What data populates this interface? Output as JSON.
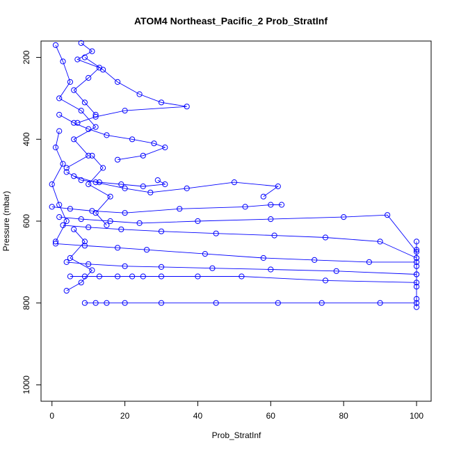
{
  "chart_data": {
    "type": "line",
    "title": "ATOM4 Northeast_Pacific_2 Prob_StratInf",
    "xlabel": "Prob_StratInf",
    "ylabel": "Pressure (mbar)",
    "xlim": [
      -3,
      104
    ],
    "ylim": [
      1040,
      160
    ],
    "y_reversed": true,
    "x_ticks": [
      0,
      20,
      40,
      60,
      80,
      100
    ],
    "y_ticks": [
      200,
      400,
      600,
      800,
      1000
    ],
    "grid": false,
    "legend": "none",
    "marker": "open-circle",
    "series_color": "#0000ff",
    "series": [
      {
        "x": [
          1,
          3,
          5,
          2,
          8,
          12,
          6,
          10,
          4
        ],
        "y": [
          170,
          210,
          260,
          300,
          330,
          370,
          400,
          440,
          470
        ]
      },
      {
        "x": [
          9,
          14,
          18,
          24,
          30,
          37,
          20,
          12,
          7
        ],
        "y": [
          200,
          230,
          260,
          290,
          310,
          320,
          330,
          345,
          360
        ]
      },
      {
        "x": [
          2,
          6,
          10,
          15,
          22,
          28,
          31,
          25,
          18
        ],
        "y": [
          340,
          360,
          375,
          390,
          400,
          410,
          420,
          440,
          450
        ]
      },
      {
        "x": [
          4,
          8,
          13,
          19,
          25,
          31,
          29
        ],
        "y": [
          480,
          500,
          505,
          510,
          515,
          510,
          500
        ]
      },
      {
        "x": [
          6,
          12,
          20,
          27,
          37,
          50,
          62,
          58
        ],
        "y": [
          490,
          505,
          520,
          530,
          520,
          505,
          515,
          540
        ]
      },
      {
        "x": [
          0,
          5,
          11,
          20,
          35,
          53,
          60,
          63
        ],
        "y": [
          565,
          570,
          575,
          580,
          570,
          565,
          560,
          560
        ]
      },
      {
        "x": [
          2,
          8,
          16,
          24,
          40,
          60,
          80,
          92,
          100
        ],
        "y": [
          590,
          595,
          600,
          605,
          600,
          595,
          590,
          585,
          675
        ]
      },
      {
        "x": [
          3,
          10,
          19,
          30,
          45,
          61,
          75,
          90,
          100
        ],
        "y": [
          610,
          615,
          620,
          625,
          630,
          635,
          640,
          650,
          690
        ]
      },
      {
        "x": [
          1,
          9,
          18,
          26,
          42,
          58,
          72,
          87,
          100
        ],
        "y": [
          655,
          660,
          665,
          670,
          680,
          690,
          695,
          700,
          700
        ]
      },
      {
        "x": [
          4,
          10,
          20,
          30,
          44,
          60,
          78,
          100
        ],
        "y": [
          700,
          705,
          710,
          712,
          715,
          718,
          722,
          730
        ]
      },
      {
        "x": [
          5,
          9,
          13,
          18,
          22,
          25,
          30,
          40,
          52,
          75,
          100
        ],
        "y": [
          735,
          735,
          735,
          735,
          735,
          735,
          735,
          735,
          735,
          745,
          750
        ]
      },
      {
        "x": [
          9,
          12,
          15,
          20,
          30,
          45,
          62,
          74,
          90,
          100
        ],
        "y": [
          800,
          800,
          800,
          800,
          800,
          800,
          800,
          800,
          800,
          800
        ]
      },
      {
        "x": [
          100,
          100,
          100,
          100,
          100,
          100,
          100,
          100
        ],
        "y": [
          650,
          670,
          690,
          710,
          730,
          760,
          790,
          810
        ]
      },
      {
        "x": [
          8,
          11,
          7,
          13,
          10,
          6,
          9,
          12
        ],
        "y": [
          165,
          185,
          205,
          225,
          250,
          280,
          310,
          340
        ]
      },
      {
        "x": [
          2,
          1,
          3,
          0,
          2,
          4,
          1
        ],
        "y": [
          380,
          420,
          460,
          510,
          560,
          600,
          650
        ]
      },
      {
        "x": [
          6,
          9,
          5,
          11,
          8,
          4
        ],
        "y": [
          620,
          650,
          690,
          720,
          750,
          770
        ]
      },
      {
        "x": [
          11,
          14,
          10,
          16,
          12,
          15
        ],
        "y": [
          440,
          470,
          510,
          540,
          580,
          610
        ]
      }
    ]
  }
}
